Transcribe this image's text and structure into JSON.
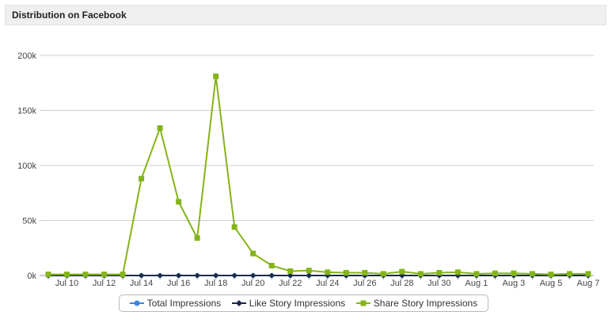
{
  "header": {
    "title": "Distribution on Facebook"
  },
  "colors": {
    "total": "#3b86d8",
    "like": "#1c2a4a",
    "share": "#84b41a",
    "grid": "#cfcfcf"
  },
  "chart_data": {
    "type": "line",
    "x": [
      "Jul 9",
      "Jul 10",
      "Jul 11",
      "Jul 12",
      "Jul 13",
      "Jul 14",
      "Jul 15",
      "Jul 16",
      "Jul 17",
      "Jul 18",
      "Jul 19",
      "Jul 20",
      "Jul 21",
      "Jul 22",
      "Jul 23",
      "Jul 24",
      "Jul 25",
      "Jul 26",
      "Jul 27",
      "Jul 28",
      "Jul 29",
      "Jul 30",
      "Jul 31",
      "Aug 1",
      "Aug 2",
      "Aug 3",
      "Aug 4",
      "Aug 5",
      "Aug 6",
      "Aug 7"
    ],
    "x_tick_labels": [
      "Jul 10",
      "Jul 12",
      "Jul 14",
      "Jul 16",
      "Jul 18",
      "Jul 20",
      "Jul 22",
      "Jul 24",
      "Jul 26",
      "Jul 28",
      "Jul 30",
      "Aug 1",
      "Aug 3",
      "Aug 5",
      "Aug 7"
    ],
    "y_tick_labels": [
      "0k",
      "50k",
      "100k",
      "150k",
      "200k"
    ],
    "ylim": [
      0,
      200000
    ],
    "grid": true,
    "legend_position": "bottom-center",
    "series": [
      {
        "name": "Total Impressions",
        "color": "#3b86d8",
        "marker": "circle",
        "values": [
          0,
          0,
          0,
          0,
          0,
          0,
          0,
          0,
          0,
          0,
          0,
          0,
          0,
          0,
          0,
          0,
          0,
          0,
          0,
          0,
          0,
          0,
          0,
          0,
          0,
          0,
          0,
          0,
          0,
          0
        ]
      },
      {
        "name": "Like Story Impressions",
        "color": "#1c2a4a",
        "marker": "diamond",
        "values": [
          0,
          0,
          0,
          0,
          0,
          0,
          0,
          0,
          0,
          0,
          0,
          0,
          0,
          0,
          0,
          0,
          0,
          0,
          0,
          0,
          0,
          0,
          0,
          0,
          0,
          0,
          0,
          0,
          0,
          0
        ]
      },
      {
        "name": "Share Story Impressions",
        "color": "#84b41a",
        "marker": "square",
        "values": [
          1000,
          1000,
          1000,
          1000,
          1000,
          88000,
          134000,
          67000,
          34000,
          181000,
          44000,
          20000,
          9000,
          4000,
          4500,
          3000,
          2500,
          2500,
          1500,
          3500,
          1500,
          2500,
          3000,
          1500,
          2000,
          2000,
          1500,
          1000,
          1500,
          1500
        ]
      }
    ]
  }
}
